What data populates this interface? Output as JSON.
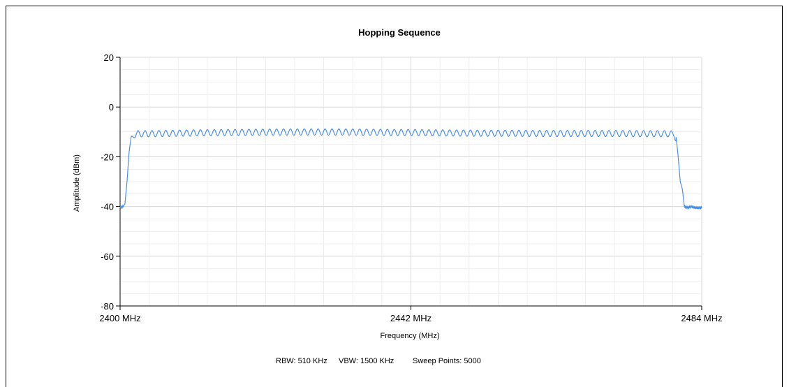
{
  "chart_data": {
    "type": "line",
    "title": "Hopping Sequence",
    "xlabel": "Frequency (MHz)",
    "ylabel": "Amplitude (dBm)",
    "xlim": [
      2400,
      2484
    ],
    "ylim": [
      -80,
      20
    ],
    "x_ticks": [
      2400,
      2442,
      2484
    ],
    "x_tick_labels": [
      "2400 MHz",
      "2442 MHz",
      "2484 MHz"
    ],
    "y_ticks": [
      20,
      0,
      -20,
      -40,
      -60,
      -80
    ],
    "y_tick_labels": [
      "20",
      "0",
      "-20",
      "-40",
      "-60",
      "-80"
    ],
    "grid": true,
    "line_color": "#4a90e2",
    "series": [
      {
        "x": [
          2400,
          2400.4,
          2400.7,
          2401,
          2401.3,
          2401.6,
          2402,
          2402.5,
          2403,
          2404,
          2408,
          2412,
          2416,
          2420,
          2424,
          2428,
          2432,
          2436,
          2440,
          2442,
          2444,
          2448,
          2452,
          2456,
          2460,
          2464,
          2468,
          2472,
          2476,
          2479,
          2480,
          2480.3,
          2480.6,
          2480.9,
          2481.2,
          2481.5,
          2482,
          2482.5,
          2483,
          2484
        ],
        "y": [
          -40.5,
          -40,
          -39,
          -30,
          -18,
          -12,
          -10,
          -9.5,
          -9.5,
          -9.5,
          -9.3,
          -9.1,
          -9,
          -8.9,
          -8.8,
          -8.8,
          -8.8,
          -8.9,
          -9,
          -9,
          -9.1,
          -9.2,
          -9.3,
          -9.3,
          -9.4,
          -9.4,
          -9.4,
          -9.4,
          -9.5,
          -9.5,
          -9.6,
          -12,
          -20,
          -30,
          -33,
          -40,
          -40.5,
          -40,
          -40.5,
          -40.5
        ]
      }
    ],
    "ripple_period_mhz": 1,
    "ripple_depth_db": 2.5
  },
  "footer": {
    "rbw": "RBW: 510 KHz",
    "vbw": "VBW: 1500 KHz",
    "sweep_points": "Sweep Points: 5000"
  }
}
